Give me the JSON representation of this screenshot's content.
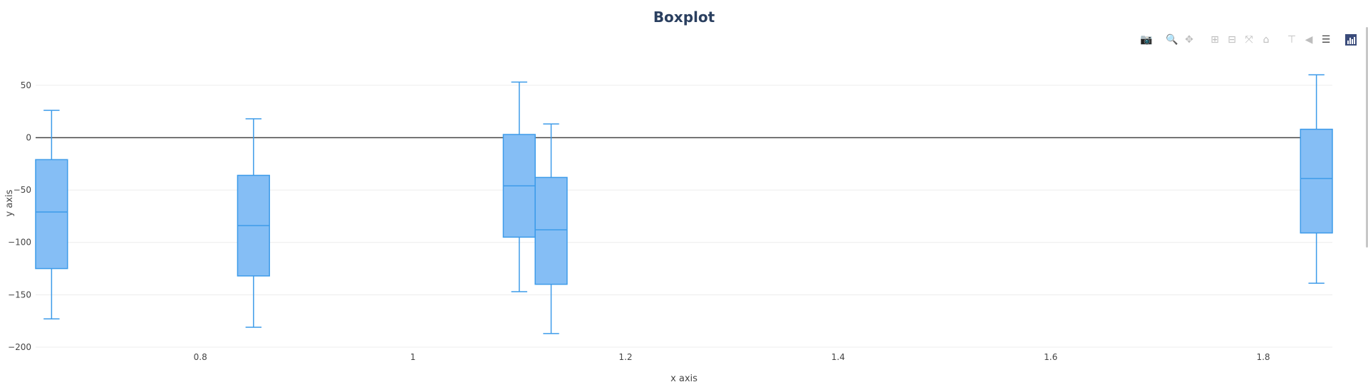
{
  "toolbar": {
    "buttons": [
      {
        "name": "camera-icon",
        "glyph": "📷"
      },
      {
        "name": "zoom-icon",
        "glyph": "🔍"
      },
      {
        "name": "pan-icon",
        "glyph": "✥"
      },
      {
        "name": "zoom-in-icon",
        "glyph": "⊞"
      },
      {
        "name": "zoom-out-icon",
        "glyph": "⊟"
      },
      {
        "name": "autoscale-icon",
        "glyph": "⤧"
      },
      {
        "name": "home-icon",
        "glyph": "⌂"
      },
      {
        "name": "spike-lines-icon",
        "glyph": "⊤"
      },
      {
        "name": "hover-closest-icon",
        "glyph": "◀"
      },
      {
        "name": "hover-compare-icon",
        "glyph": "☰"
      }
    ]
  },
  "chart_data": {
    "type": "box",
    "title": "Boxplot",
    "xlabel": "x axis",
    "ylabel": "y axis",
    "xlim": [
      0.645,
      1.865
    ],
    "ylim": [
      -200,
      75
    ],
    "xticks": [
      0.8,
      1,
      1.2,
      1.4,
      1.6,
      1.8
    ],
    "xtick_labels": [
      "0.8",
      "1",
      "1.2",
      "1.4",
      "1.6",
      "1.8"
    ],
    "yticks": [
      50,
      0,
      -50,
      -100,
      -150,
      -200
    ],
    "ytick_labels": [
      "50",
      "0",
      "−50",
      "−100",
      "−150",
      "−200"
    ],
    "grid": true,
    "zeroline": true,
    "color": "#3d9be9",
    "fill_color": "#85bef5",
    "box_width": 0.015,
    "boxes": [
      {
        "x": 0.66,
        "min": -173,
        "q1": -125,
        "median": -71,
        "q3": -21,
        "max": 26
      },
      {
        "x": 0.85,
        "min": -181,
        "q1": -132,
        "median": -84,
        "q3": -36,
        "max": 18
      },
      {
        "x": 1.1,
        "min": -147,
        "q1": -95,
        "median": -46,
        "q3": 3,
        "max": 53
      },
      {
        "x": 1.13,
        "min": -187,
        "q1": -140,
        "median": -88,
        "q3": -38,
        "max": 13
      },
      {
        "x": 1.85,
        "min": -139,
        "q1": -91,
        "median": -39,
        "q3": 8,
        "max": 60
      }
    ]
  }
}
